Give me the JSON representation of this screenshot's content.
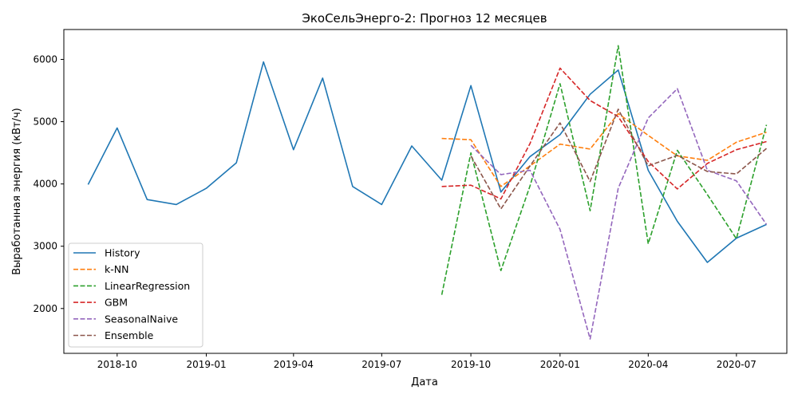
{
  "chart_data": {
    "type": "line",
    "title": "ЭкоСельЭнерго-2: Прогноз 12 месяцев",
    "xlabel": "Дата",
    "ylabel": "Выработанная энергия (кВт/ч)",
    "x_range": [
      "2018-08-07",
      "2020-08-22"
    ],
    "ylim": [
      1280,
      6480
    ],
    "x_ticks": [
      {
        "date": "2018-10-01",
        "label": "2018-10"
      },
      {
        "date": "2019-01-01",
        "label": "2019-01"
      },
      {
        "date": "2019-04-01",
        "label": "2019-04"
      },
      {
        "date": "2019-07-01",
        "label": "2019-07"
      },
      {
        "date": "2019-10-01",
        "label": "2019-10"
      },
      {
        "date": "2020-01-01",
        "label": "2020-01"
      },
      {
        "date": "2020-04-01",
        "label": "2020-04"
      },
      {
        "date": "2020-07-01",
        "label": "2020-07"
      }
    ],
    "y_ticks": [
      2000,
      3000,
      4000,
      5000,
      6000
    ],
    "grid": false,
    "legend_position": "lower-left",
    "history_x": [
      "2018-09-01",
      "2018-10-01",
      "2018-11-01",
      "2018-12-01",
      "2019-01-01",
      "2019-02-01",
      "2019-03-01",
      "2019-04-01",
      "2019-05-01",
      "2019-06-01",
      "2019-07-01",
      "2019-08-01",
      "2019-09-01",
      "2019-10-01",
      "2019-11-01",
      "2019-12-01",
      "2020-01-01",
      "2020-02-01",
      "2020-03-01",
      "2020-04-01",
      "2020-05-01",
      "2020-06-01",
      "2020-07-01",
      "2020-08-01"
    ],
    "forecast_x": [
      "2019-09-01",
      "2019-10-01",
      "2019-11-01",
      "2019-12-01",
      "2020-01-01",
      "2020-02-01",
      "2020-03-01",
      "2020-04-01",
      "2020-05-01",
      "2020-06-01",
      "2020-07-01",
      "2020-08-01"
    ],
    "series": [
      {
        "name": "History",
        "color": "#1f77b4",
        "style": "solid",
        "x_key": "history_x",
        "values": [
          3990,
          4900,
          3750,
          3670,
          3930,
          4340,
          5960,
          4550,
          5700,
          3960,
          3670,
          4610,
          4060,
          5580,
          3870,
          4440,
          4790,
          5440,
          5830,
          4220,
          3400,
          2740,
          3130,
          3350
        ]
      },
      {
        "name": "k-NN",
        "color": "#ff7f0e",
        "style": "dashed",
        "x_key": "forecast_x",
        "values": [
          4730,
          4710,
          3960,
          4290,
          4640,
          4560,
          5130,
          4780,
          4450,
          4380,
          4670,
          4830
        ]
      },
      {
        "name": "LinearRegression",
        "color": "#2ca02c",
        "style": "dashed",
        "x_key": "forecast_x",
        "values": [
          2220,
          4500,
          2610,
          3970,
          5610,
          3570,
          6220,
          3040,
          4540,
          3830,
          3120,
          4950
        ]
      },
      {
        "name": "GBM",
        "color": "#d62728",
        "style": "dashed",
        "x_key": "forecast_x",
        "values": [
          3960,
          3980,
          3760,
          4650,
          5860,
          5340,
          5080,
          4360,
          3920,
          4330,
          4550,
          4680
        ]
      },
      {
        "name": "SeasonalNaive",
        "color": "#9467bd",
        "style": "dashed",
        "x_key": "forecast_x",
        "values": [
          null,
          4620,
          4150,
          4220,
          3270,
          1510,
          3930,
          5060,
          5530,
          4220,
          4050,
          3350
        ]
      },
      {
        "name": "Ensemble",
        "color": "#8c564b",
        "style": "dashed",
        "x_key": "forecast_x",
        "values": [
          null,
          4450,
          3600,
          4290,
          4980,
          4040,
          5200,
          4290,
          4460,
          4200,
          4160,
          4570
        ]
      }
    ]
  }
}
